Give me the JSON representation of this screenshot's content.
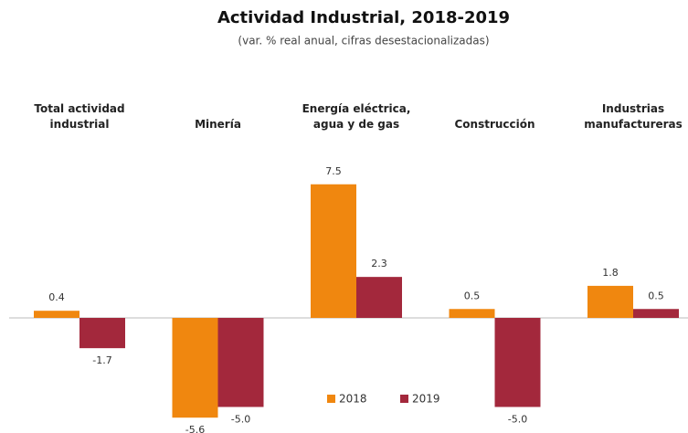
{
  "chart_data": {
    "type": "bar",
    "title": "Actividad Industrial, 2018-2019",
    "subtitle": "(var. % real anual, cifras desestacionalizadas)",
    "categories": [
      "Total actividad\nindustrial",
      "Minería",
      "Energía eléctrica,\nagua y de gas",
      "Construcción",
      "Industrias\nmanufactureras"
    ],
    "series": [
      {
        "name": "2018",
        "color": "#f0870f",
        "values": [
          0.4,
          -5.6,
          7.5,
          0.5,
          1.8
        ]
      },
      {
        "name": "2019",
        "color": "#a3283c",
        "values": [
          -1.7,
          -5.0,
          2.3,
          -5.0,
          0.5
        ],
        "value_labels": [
          "-1.7",
          "-5.0",
          "2.3",
          "-5.0",
          "0.5"
        ]
      }
    ]
  }
}
